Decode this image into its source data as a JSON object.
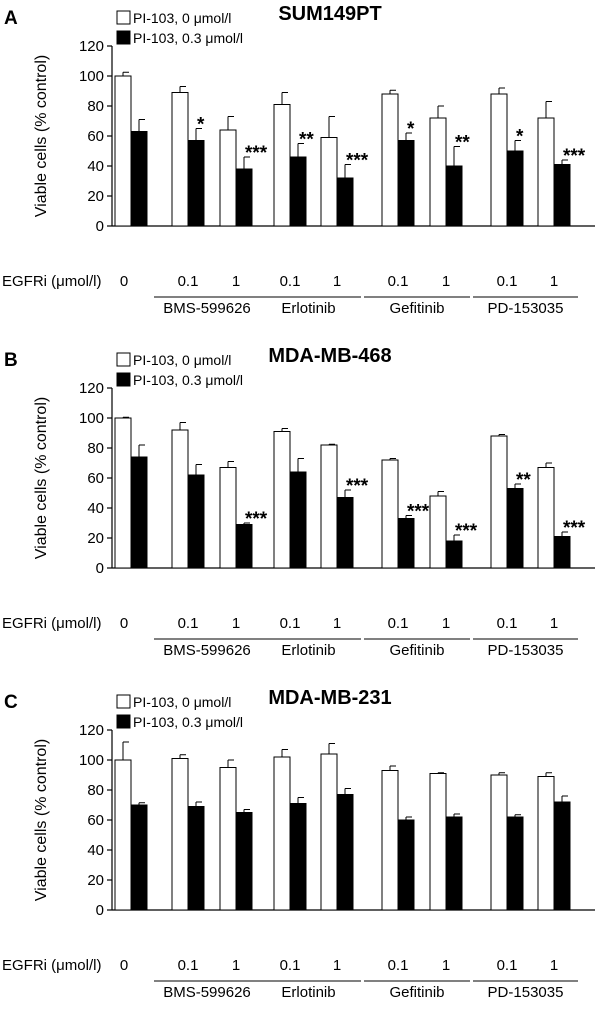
{
  "colors": {
    "bar_control": "#ffffff",
    "bar_treated": "#000000",
    "stroke": "#000000"
  },
  "x_axis": {
    "label": "EGFRi (μmol/l)",
    "doses": [
      "0",
      "0.1",
      "1",
      "0.1",
      "1",
      "0.1",
      "1",
      "0.1",
      "1"
    ],
    "groups": [
      {
        "name": "BMS-599626",
        "start": 1,
        "end": 2
      },
      {
        "name": "Erlotinib",
        "start": 3,
        "end": 4
      },
      {
        "name": "Gefitinib",
        "start": 5,
        "end": 6
      },
      {
        "name": "PD-153035",
        "start": 7,
        "end": 8
      }
    ]
  },
  "chart_data": [
    {
      "type": "bar",
      "panel": "A",
      "title": "SUM149PT",
      "ylabel": "Viable cells (% control)",
      "ylim": [
        0,
        120
      ],
      "yticks": [
        0,
        20,
        40,
        60,
        80,
        100,
        120
      ],
      "categories": [
        "0",
        "0.1",
        "1",
        "0.1",
        "1",
        "0.1",
        "1",
        "0.1",
        "1"
      ],
      "series": [
        {
          "name": "PI-103, 0 μmol/l",
          "values": [
            100,
            89,
            64,
            81,
            59,
            88,
            72,
            88,
            72
          ],
          "errors": [
            2.5,
            4,
            9,
            8,
            14,
            2.5,
            8,
            4,
            11
          ]
        },
        {
          "name": "PI-103, 0.3 μmol/l",
          "values": [
            63,
            57,
            38,
            46,
            32,
            57,
            40,
            50,
            41
          ],
          "errors": [
            8,
            8,
            8,
            9,
            9,
            5,
            13,
            7,
            3
          ]
        }
      ],
      "significance": [
        "",
        "*",
        "***",
        "**",
        "***",
        "*",
        "**",
        "*",
        "***"
      ]
    },
    {
      "type": "bar",
      "panel": "B",
      "title": "MDA-MB-468",
      "ylabel": "Viable cells (% control)",
      "ylim": [
        0,
        120
      ],
      "yticks": [
        0,
        20,
        40,
        60,
        80,
        100,
        120
      ],
      "categories": [
        "0",
        "0.1",
        "1",
        "0.1",
        "1",
        "0.1",
        "1",
        "0.1",
        "1"
      ],
      "series": [
        {
          "name": "PI-103, 0 μmol/l",
          "values": [
            100,
            92,
            67,
            91,
            82,
            72,
            48,
            88,
            67
          ],
          "errors": [
            0.5,
            5,
            4,
            2,
            0.5,
            1,
            3,
            1,
            3
          ]
        },
        {
          "name": "PI-103, 0.3 μmol/l",
          "values": [
            74,
            62,
            29,
            64,
            47,
            33,
            18,
            53,
            21
          ],
          "errors": [
            8,
            7,
            1,
            9,
            5,
            2,
            4,
            3,
            3
          ]
        }
      ],
      "significance": [
        "",
        "",
        "***",
        "",
        "***",
        "***",
        "***",
        "**",
        "***"
      ]
    },
    {
      "type": "bar",
      "panel": "C",
      "title": "MDA-MB-231",
      "ylabel": "Viable cells (% control)",
      "ylim": [
        0,
        120
      ],
      "yticks": [
        0,
        20,
        40,
        60,
        80,
        100,
        120
      ],
      "categories": [
        "0",
        "0.1",
        "1",
        "0.1",
        "1",
        "0.1",
        "1",
        "0.1",
        "1"
      ],
      "series": [
        {
          "name": "PI-103, 0 μmol/l",
          "values": [
            100,
            101,
            95,
            102,
            104,
            93,
            91,
            90,
            89
          ],
          "errors": [
            12,
            2.5,
            5,
            5,
            7,
            3,
            0.5,
            1.5,
            2.5
          ]
        },
        {
          "name": "PI-103, 0.3 μmol/l",
          "values": [
            70,
            69,
            65,
            71,
            77,
            60,
            62,
            62,
            72
          ],
          "errors": [
            1.5,
            3,
            2,
            4,
            4,
            2,
            2,
            1.5,
            4
          ]
        }
      ],
      "significance": [
        "",
        "",
        "",
        "",
        "",
        "",
        "",
        "",
        ""
      ]
    }
  ]
}
